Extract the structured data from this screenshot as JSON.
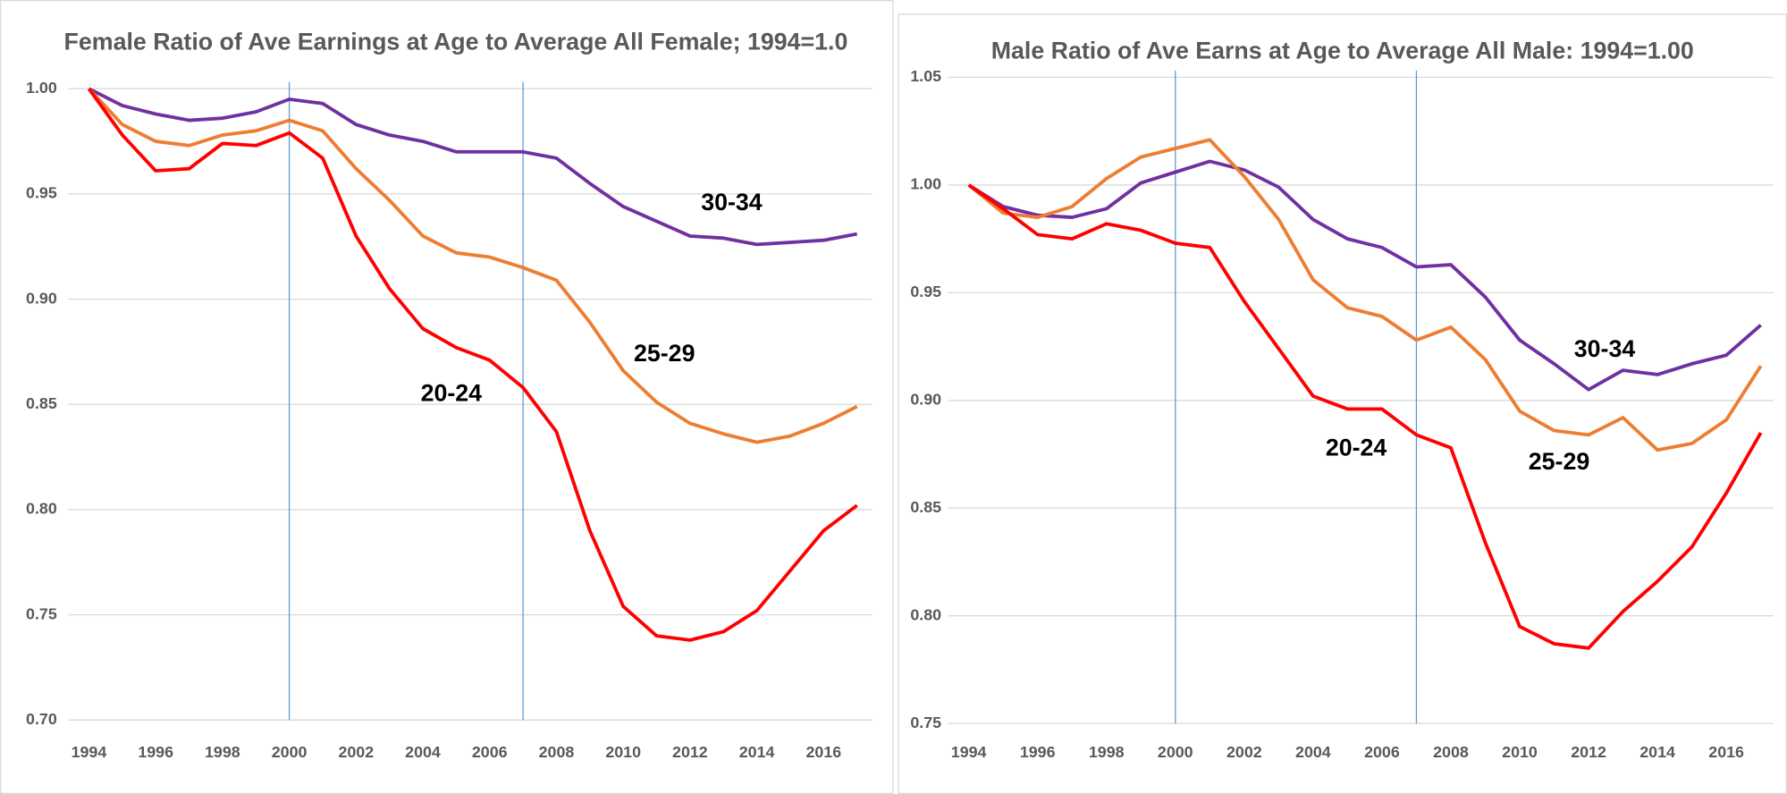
{
  "chart_data": [
    {
      "type": "line",
      "title": "Female Ratio of Ave Earnings at Age to Average All Female; 1994=1.0",
      "x": [
        1994,
        1995,
        1996,
        1997,
        1998,
        1999,
        2000,
        2001,
        2002,
        2003,
        2004,
        2005,
        2006,
        2007,
        2008,
        2009,
        2010,
        2011,
        2012,
        2013,
        2014,
        2015,
        2016,
        2017
      ],
      "xlim": [
        1994,
        2017
      ],
      "xticks": [
        1994,
        1996,
        1998,
        2000,
        2002,
        2004,
        2006,
        2008,
        2010,
        2012,
        2014,
        2016
      ],
      "ylim": [
        0.7,
        1.0
      ],
      "yticks": [
        {
          "value": 0.7,
          "label": "0.70"
        },
        0.75,
        {
          "value": 0.8,
          "label": "0.80"
        },
        0.85,
        {
          "value": 0.9,
          "label": "0.90"
        },
        0.95,
        {
          "value": 1,
          "label": "1.00"
        }
      ],
      "grid": true,
      "vlines": [
        2000,
        2007
      ],
      "series": [
        {
          "name": "30-34",
          "color": "#7030a0",
          "values": [
            1.0,
            0.992,
            0.988,
            0.985,
            0.986,
            0.989,
            0.995,
            0.993,
            0.983,
            0.978,
            0.975,
            0.97,
            0.97,
            0.97,
            0.967,
            0.955,
            0.944,
            0.937,
            0.93,
            0.929,
            0.926,
            0.927,
            0.928,
            0.931
          ]
        },
        {
          "name": "25-29",
          "color": "#ed7d31",
          "values": [
            1.0,
            0.983,
            0.975,
            0.973,
            0.978,
            0.98,
            0.985,
            0.98,
            0.962,
            0.947,
            0.93,
            0.922,
            0.92,
            0.915,
            0.909,
            0.889,
            0.866,
            0.851,
            0.841,
            0.836,
            0.832,
            0.835,
            0.841,
            0.849
          ]
        },
        {
          "name": "20-24",
          "color": "#ff0000",
          "values": [
            1.0,
            0.978,
            0.961,
            0.962,
            0.974,
            0.973,
            0.979,
            0.967,
            0.93,
            0.905,
            0.886,
            0.877,
            0.871,
            0.858,
            0.837,
            0.79,
            0.754,
            0.74,
            0.738,
            0.742,
            0.752,
            0.771,
            0.79,
            0.802
          ]
        }
      ]
    },
    {
      "type": "line",
      "title": "Male Ratio of Ave Earns at Age to Average All Male:  1994=1.00",
      "x": [
        1994,
        1995,
        1996,
        1997,
        1998,
        1999,
        2000,
        2001,
        2002,
        2003,
        2004,
        2005,
        2006,
        2007,
        2008,
        2009,
        2010,
        2011,
        2012,
        2013,
        2014,
        2015,
        2016,
        2017
      ],
      "xlim": [
        1994,
        2017
      ],
      "xticks": [
        1994,
        1996,
        1998,
        2000,
        2002,
        2004,
        2006,
        2008,
        2010,
        2012,
        2014,
        2016
      ],
      "ylim": [
        0.75,
        1.05
      ],
      "yticks": [
        0.75,
        {
          "value": 0.8,
          "label": "0.80"
        },
        0.85,
        {
          "value": 0.9,
          "label": "0.90"
        },
        0.95,
        {
          "value": 1,
          "label": "1.00"
        },
        1.05
      ],
      "grid": true,
      "vlines": [
        2000,
        2007
      ],
      "series": [
        {
          "name": "30-34",
          "color": "#7030a0",
          "values": [
            1.0,
            0.99,
            0.986,
            0.985,
            0.989,
            1.001,
            1.006,
            1.011,
            1.007,
            0.999,
            0.984,
            0.975,
            0.971,
            0.962,
            0.963,
            0.948,
            0.928,
            0.917,
            0.905,
            0.914,
            0.912,
            0.917,
            0.921,
            0.935
          ]
        },
        {
          "name": "25-29",
          "color": "#ed7d31",
          "values": [
            1.0,
            0.987,
            0.985,
            0.99,
            1.003,
            1.013,
            1.017,
            1.021,
            1.004,
            0.984,
            0.956,
            0.943,
            0.939,
            0.928,
            0.934,
            0.919,
            0.895,
            0.886,
            0.884,
            0.892,
            0.877,
            0.88,
            0.891,
            0.916
          ]
        },
        {
          "name": "20-24",
          "color": "#ff0000",
          "values": [
            1.0,
            0.989,
            0.977,
            0.975,
            0.982,
            0.979,
            0.973,
            0.971,
            0.946,
            0.924,
            0.902,
            0.896,
            0.896,
            0.884,
            0.878,
            0.834,
            0.795,
            0.787,
            0.785,
            0.802,
            0.816,
            0.832,
            0.857,
            0.885
          ]
        }
      ]
    }
  ]
}
